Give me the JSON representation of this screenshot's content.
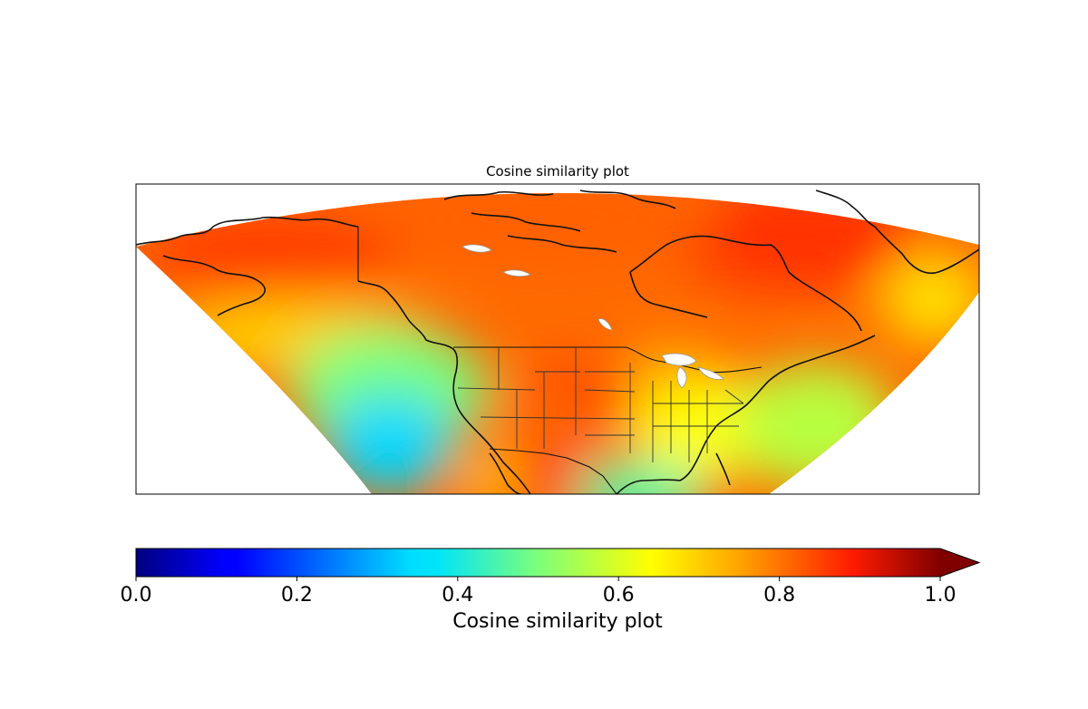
{
  "title": "Cosine similarity plot",
  "colorbar": {
    "label": "Cosine similarity plot",
    "colormap": "jet",
    "range": [
      0.0,
      1.0
    ],
    "extend": "max",
    "ticks": [
      "0.0",
      "0.2",
      "0.4",
      "0.6",
      "0.8",
      "1.0"
    ]
  },
  "map": {
    "region": "North America",
    "projection": "conic",
    "features": [
      "coastlines",
      "country borders",
      "US state borders",
      "lakes"
    ],
    "field_pattern": [
      {
        "area": "Arctic / northern Canada",
        "value": 0.85
      },
      {
        "area": "Alaska",
        "value": 0.87
      },
      {
        "area": "US Great Plains / Colorado",
        "value": 0.83
      },
      {
        "area": "Eastern US",
        "value": 0.66
      },
      {
        "area": "Pacific Ocean off California",
        "value": 0.35
      },
      {
        "area": "Gulf of Mexico",
        "value": 0.45
      },
      {
        "area": "Western Mexico",
        "value": 0.85
      },
      {
        "area": "North Atlantic",
        "value": 0.58
      }
    ]
  }
}
